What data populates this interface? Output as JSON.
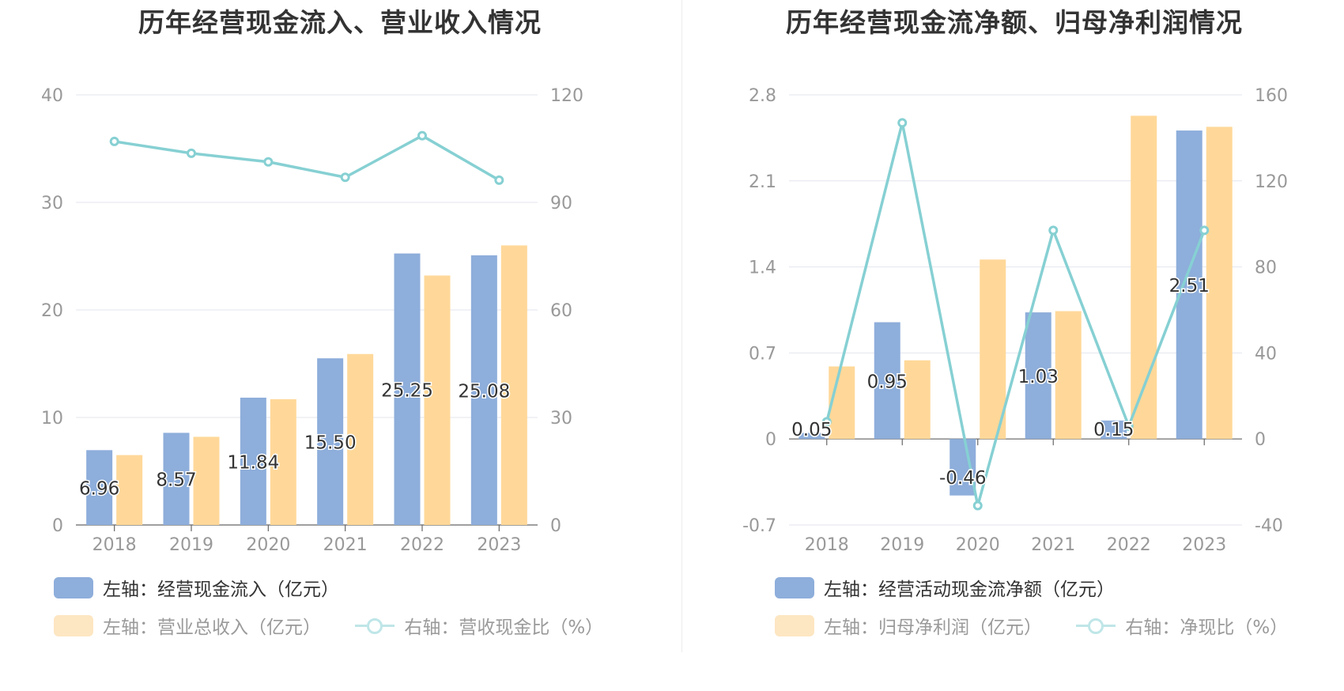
{
  "colors": {
    "bar1": "#8eaedb",
    "bar2": "#ffd899",
    "line": "#86d0d3",
    "grid": "#e3e6ee",
    "axis": "#666666",
    "tick": "#999999",
    "label": "#333333",
    "legend_faded_bar": "#fde6c2",
    "legend_faded_line": "#bfe6e8"
  },
  "chart_data": [
    {
      "type": "bar",
      "title": "历年经营现金流入、营业收入情况",
      "categories": [
        "2018",
        "2019",
        "2020",
        "2021",
        "2022",
        "2023"
      ],
      "y_left": {
        "min": 0,
        "max": 40,
        "ticks": [
          "0",
          "10",
          "20",
          "30",
          "40"
        ]
      },
      "y_right": {
        "min": 0,
        "max": 120,
        "ticks": [
          "0",
          "30",
          "60",
          "90",
          "120"
        ]
      },
      "series": [
        {
          "name": "左轴：经营现金流入（亿元）",
          "type": "bar",
          "axis": "left",
          "values": [
            6.96,
            8.57,
            11.84,
            15.5,
            25.25,
            25.08
          ],
          "labels": [
            "6.96",
            "8.57",
            "11.84",
            "15.50",
            "25.25",
            "25.08"
          ]
        },
        {
          "name": "左轴：营业总收入（亿元）",
          "type": "bar",
          "axis": "left",
          "values": [
            6.5,
            8.2,
            11.7,
            15.9,
            23.2,
            26.0
          ]
        },
        {
          "name": "右轴：营收现金比（%）",
          "type": "line",
          "axis": "right",
          "values": [
            107.0,
            103.7,
            101.3,
            97.0,
            108.6,
            96.2
          ]
        }
      ],
      "grid": true,
      "legend": "bottom"
    },
    {
      "type": "bar",
      "title": "历年经营现金流净额、归母净利润情况",
      "categories": [
        "2018",
        "2019",
        "2020",
        "2021",
        "2022",
        "2023"
      ],
      "y_left": {
        "min": -0.7,
        "max": 2.8,
        "ticks": [
          "-0.7",
          "0",
          "0.7",
          "1.4",
          "2.1",
          "2.8"
        ]
      },
      "y_right": {
        "min": -40,
        "max": 160,
        "ticks": [
          "-40",
          "0",
          "40",
          "80",
          "120",
          "160"
        ]
      },
      "series": [
        {
          "name": "左轴：经营活动现金流净额（亿元）",
          "type": "bar",
          "axis": "left",
          "values": [
            0.05,
            0.95,
            -0.46,
            1.03,
            0.15,
            2.51
          ],
          "labels": [
            "0.05",
            "0.95",
            "-0.46",
            "1.03",
            "0.15",
            "2.51"
          ]
        },
        {
          "name": "左轴：归母净利润（亿元）",
          "type": "bar",
          "axis": "left",
          "values": [
            0.59,
            0.64,
            1.46,
            1.04,
            2.63,
            2.54
          ]
        },
        {
          "name": "右轴：净现比（%）",
          "type": "line",
          "axis": "right",
          "values": [
            8,
            147,
            -31,
            97,
            6,
            97
          ]
        }
      ],
      "grid": true,
      "legend": "bottom"
    }
  ]
}
